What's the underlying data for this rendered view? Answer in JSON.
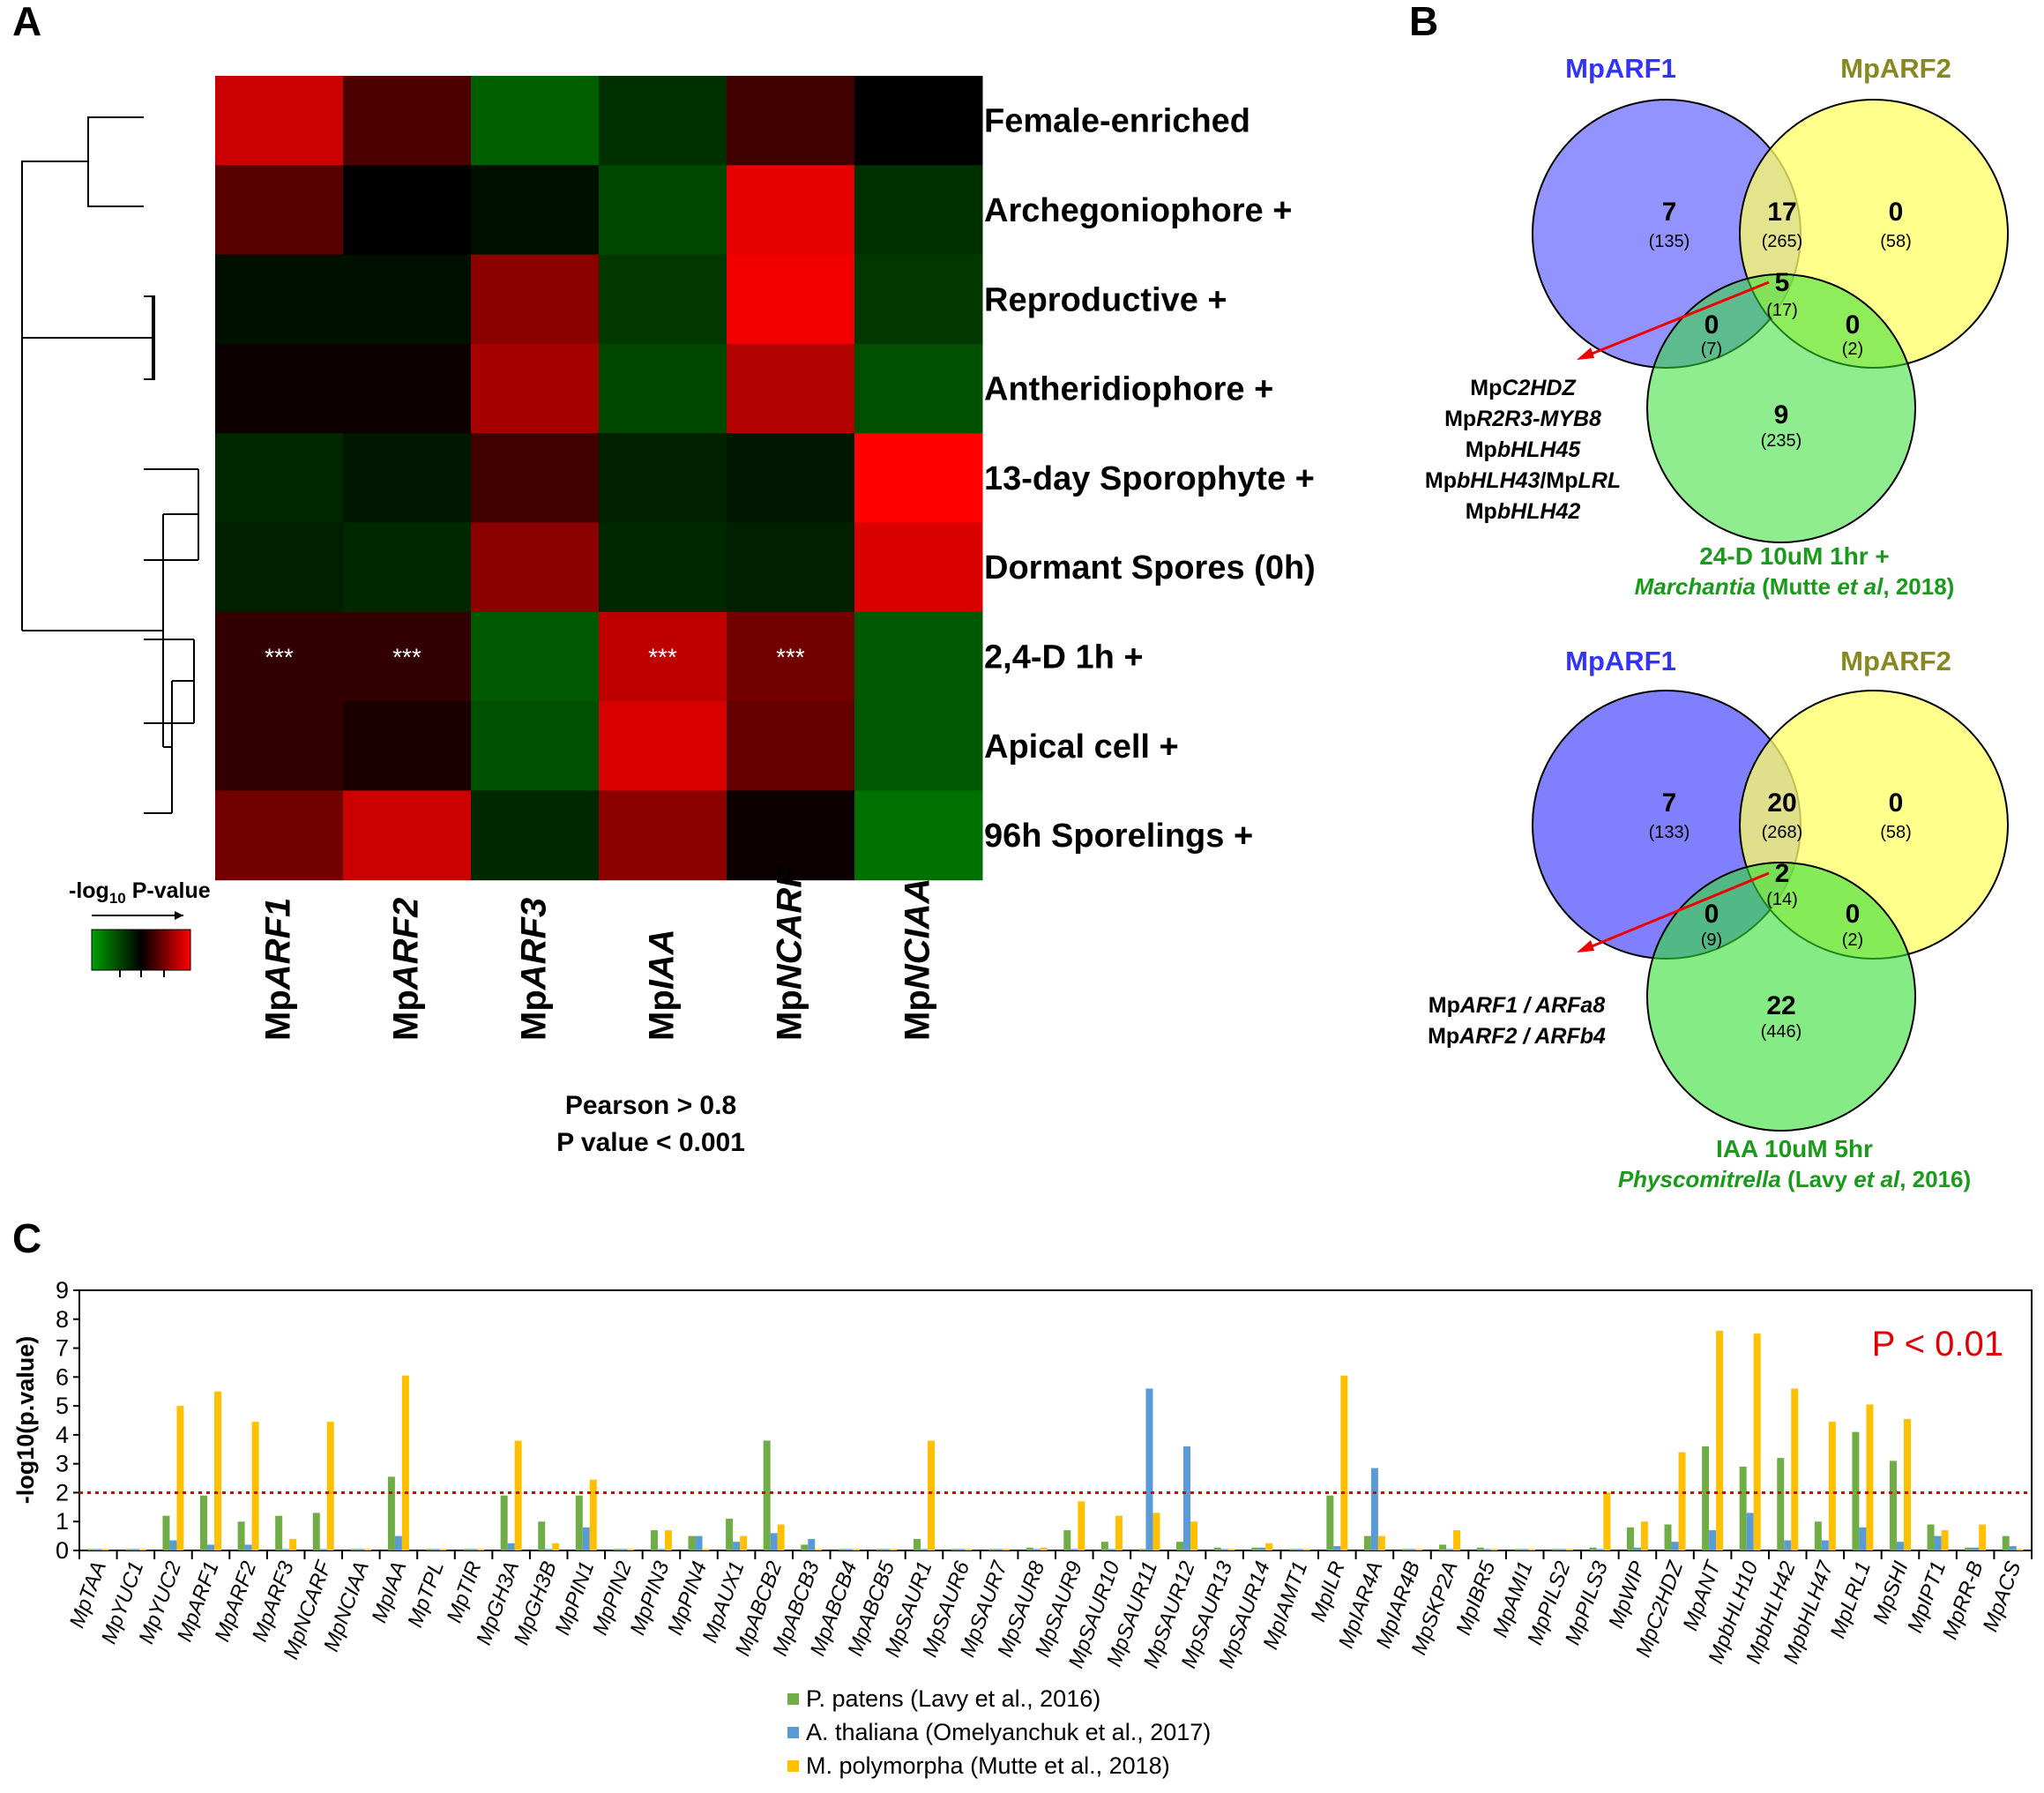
{
  "figure": {
    "panel_labels": [
      "A",
      "B",
      "C"
    ]
  },
  "chart_data": [
    {
      "panel": "A",
      "type": "heatmap",
      "columns": [
        "MpARF1",
        "MpARF2",
        "MpARF3",
        "MpIAA",
        "MpNCARF",
        "MpNCIAA"
      ],
      "columns_display": [
        {
          "prefix": "Mp",
          "name": "ARF1"
        },
        {
          "prefix": "Mp",
          "name": "ARF2"
        },
        {
          "prefix": "Mp",
          "name": "ARF3"
        },
        {
          "prefix": "Mp",
          "name": "IAA"
        },
        {
          "prefix": "Mp",
          "name": "NCARF"
        },
        {
          "prefix": "Mp",
          "name": "NCIAA"
        }
      ],
      "rows": [
        "Female-enriched",
        "Archegoniophore +",
        "Reproductive +",
        "Antheridiophore +",
        "13-day Sporophyte +",
        "Dormant Spores (0h)",
        "2,4-D 1h +",
        "Apical cell +",
        "96h Sporelings +"
      ],
      "values": [
        [
          0.8,
          0.3,
          -0.6,
          -0.3,
          0.25,
          0.0
        ],
        [
          0.35,
          0.0,
          -0.1,
          -0.45,
          0.9,
          -0.3
        ],
        [
          -0.1,
          -0.1,
          0.55,
          -0.35,
          0.95,
          -0.35
        ],
        [
          0.05,
          0.05,
          0.65,
          -0.45,
          0.7,
          -0.5
        ],
        [
          -0.25,
          -0.15,
          0.25,
          -0.2,
          -0.15,
          1.0
        ],
        [
          -0.2,
          -0.25,
          0.55,
          -0.25,
          -0.2,
          0.85
        ],
        [
          0.2,
          0.2,
          -0.55,
          0.75,
          0.45,
          -0.55
        ],
        [
          0.2,
          0.1,
          -0.5,
          0.85,
          0.4,
          -0.55
        ],
        [
          0.45,
          0.8,
          -0.25,
          0.55,
          0.05,
          -0.7
        ]
      ],
      "significance": [
        {
          "row": 6,
          "col": 0,
          "label": "***"
        },
        {
          "row": 6,
          "col": 1,
          "label": "***"
        },
        {
          "row": 6,
          "col": 3,
          "label": "***"
        },
        {
          "row": 6,
          "col": 4,
          "label": "***"
        }
      ],
      "colorscale": {
        "low": "#00a000",
        "mid": "#000000",
        "high": "#ff0000"
      },
      "legend": {
        "label_prefix": "-log",
        "label_sub": "10",
        "label_suffix": " P-value"
      },
      "footnote": [
        "Pearson > 0.8",
        "P value < 0.001"
      ]
    },
    {
      "panel": "B",
      "type": "venn",
      "diagrams": [
        {
          "set_labels": [
            "MpARF1",
            "MpARF2"
          ],
          "set_colors": [
            "#3333ff",
            "#888820"
          ],
          "regions": {
            "arf1_only": {
              "count": "7",
              "total": "(135)"
            },
            "arf1_arf2": {
              "count": "17",
              "total": "(265)"
            },
            "arf2_only": {
              "count": "0",
              "total": "(58)"
            },
            "all_three": {
              "count": "5",
              "total": "(17)"
            },
            "arf1_treat": {
              "count": "0",
              "total": "(7)"
            },
            "arf2_treat": {
              "count": "0",
              "total": "(2)"
            },
            "treat_only": {
              "count": "9",
              "total": "(235)"
            }
          },
          "gene_list": [
            {
              "prefix": "Mp",
              "name": "C2HDZ",
              "mid": "",
              "name2": ""
            },
            {
              "prefix": "Mp",
              "name": "R2R3-MYB8",
              "mid": "",
              "name2": ""
            },
            {
              "prefix": "Mp",
              "name": "bHLH45",
              "mid": "",
              "name2": ""
            },
            {
              "prefix": "Mp",
              "name": "bHLH43",
              "mid": "/Mp",
              "name2": "LRL"
            },
            {
              "prefix": "Mp",
              "name": "bHLH42",
              "mid": "",
              "name2": ""
            }
          ],
          "treatment_label": "24-D 10uM 1hr +",
          "citation": {
            "species": "Marchantia",
            "pre": " (Mutte ",
            "etal": "et al",
            "post": ", 2018)"
          }
        },
        {
          "set_labels": [
            "MpARF1",
            "MpARF2"
          ],
          "set_colors": [
            "#3333ff",
            "#888820"
          ],
          "regions": {
            "arf1_only": {
              "count": "7",
              "total": "(133)"
            },
            "arf1_arf2": {
              "count": "20",
              "total": "(268)"
            },
            "arf2_only": {
              "count": "0",
              "total": "(58)"
            },
            "all_three": {
              "count": "2",
              "total": "(14)"
            },
            "arf1_treat": {
              "count": "0",
              "total": "(9)"
            },
            "arf2_treat": {
              "count": "0",
              "total": "(2)"
            },
            "treat_only": {
              "count": "22",
              "total": "(446)"
            }
          },
          "gene_list": [
            {
              "prefix": "Mp",
              "name": "ARF1 / ARFa8",
              "mid": "",
              "name2": ""
            },
            {
              "prefix": "Mp",
              "name": "ARF2 / ARFb4",
              "mid": "",
              "name2": ""
            }
          ],
          "treatment_label": "IAA 10uM 5hr",
          "citation": {
            "species": "Physcomitrella",
            "pre": " (Lavy ",
            "etal": "et al",
            "post": ", 2016)"
          }
        }
      ]
    },
    {
      "panel": "C",
      "type": "bar",
      "title": "",
      "ylabel": "-log10(p.value)",
      "ylim": [
        0,
        9
      ],
      "yticks": [
        0,
        1,
        2,
        3,
        4,
        5,
        6,
        7,
        8,
        9
      ],
      "threshold": {
        "value": 2,
        "label": "P < 0.01",
        "color": "#e00000"
      },
      "categories": [
        "MpTAA",
        "MpYUC1",
        "MpYUC2",
        "MpARF1",
        "MpARF2",
        "MpARF3",
        "MpNCARF",
        "MpNCIAA",
        "MpIAA",
        "MpTPL",
        "MpTIR",
        "MpGH3A",
        "MpGH3B",
        "MpPIN1",
        "MpPIN2",
        "MpPIN3",
        "MpPIN4",
        "MpAUX1",
        "MpABCB2",
        "MpABCB3",
        "MpABCB4",
        "MpABCB5",
        "MpSAUR1",
        "MpSAUR6",
        "MpSAUR7",
        "MpSAUR8",
        "MpSAUR9",
        "MpSAUR10",
        "MpSAUR11",
        "MpSAUR12",
        "MpSAUR13",
        "MpSAUR14",
        "MpIAMT1",
        "MpILR",
        "MpIAR4A",
        "MpIAR4B",
        "MpSKP2A",
        "MpIBR5",
        "MpAMI1",
        "MpPILS2",
        "MpPILS3",
        "MpWIP",
        "MpC2HDZ",
        "MpANT",
        "MpbHLH10",
        "MpbHLH42",
        "MpbHLH47",
        "MpLRL1",
        "MpSHI",
        "MpIPT1",
        "MpRR-B",
        "MpACS"
      ],
      "series": [
        {
          "name": "P. patens (Lavy et al., 2016)",
          "color": "#70ad47",
          "values": [
            0.05,
            0.05,
            1.2,
            1.9,
            1.0,
            1.2,
            1.3,
            0.05,
            2.55,
            0.05,
            0.05,
            1.9,
            1.0,
            1.9,
            0.05,
            0.7,
            0.5,
            1.1,
            3.8,
            0.2,
            0.05,
            0.05,
            0.4,
            0.05,
            0.05,
            0.1,
            0.7,
            0.3,
            0.05,
            0.3,
            0.1,
            0.1,
            0.05,
            1.9,
            0.5,
            0.05,
            0.2,
            0.1,
            0.05,
            0.05,
            0.1,
            0.8,
            0.9,
            3.6,
            2.9,
            3.2,
            1.0,
            4.1,
            3.1,
            0.9,
            0.1,
            0.5
          ]
        },
        {
          "name": "A. thaliana (Omelyanchuk et al., 2017)",
          "color": "#5b9bd5",
          "values": [
            0.05,
            0.05,
            0.35,
            0.2,
            0.2,
            0.05,
            0.05,
            0.05,
            0.5,
            0.05,
            0.05,
            0.25,
            0.05,
            0.8,
            0.05,
            0.05,
            0.5,
            0.3,
            0.6,
            0.4,
            0.05,
            0.05,
            0.05,
            0.05,
            0.05,
            0.05,
            0.05,
            0.05,
            5.6,
            3.6,
            0.05,
            0.1,
            0.05,
            0.15,
            2.85,
            0.05,
            0.05,
            0.05,
            0.05,
            0.05,
            0.05,
            0.1,
            0.3,
            0.7,
            1.3,
            0.35,
            0.35,
            0.8,
            0.3,
            0.5,
            0.1,
            0.15
          ]
        },
        {
          "name": "M. polymorpha (Mutte et al., 2018)",
          "color": "#ffc000",
          "values": [
            0.05,
            0.05,
            5.0,
            5.5,
            4.45,
            0.4,
            4.45,
            0.05,
            6.05,
            0.05,
            0.05,
            3.8,
            0.25,
            2.45,
            0.05,
            0.7,
            0.05,
            0.5,
            0.9,
            0.05,
            0.05,
            0.05,
            3.8,
            0.05,
            0.05,
            0.1,
            1.7,
            1.2,
            1.3,
            1.0,
            0.05,
            0.25,
            0.05,
            6.05,
            0.5,
            0.05,
            0.7,
            0.05,
            0.05,
            0.05,
            2.0,
            1.0,
            3.4,
            7.6,
            7.5,
            5.6,
            4.45,
            5.05,
            4.55,
            0.7,
            0.9,
            0.05
          ]
        }
      ]
    }
  ]
}
